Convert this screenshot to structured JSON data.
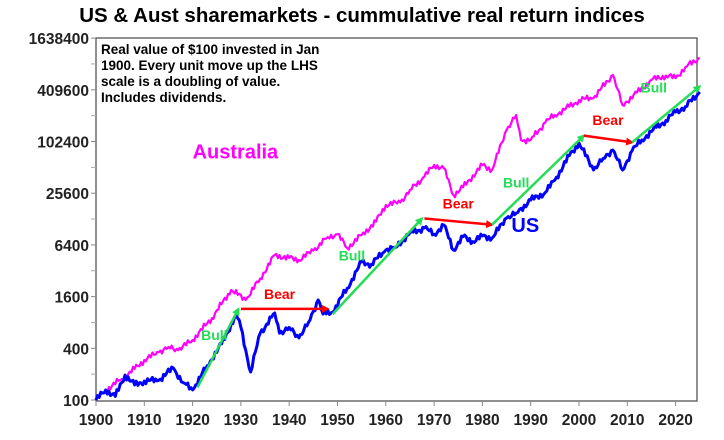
{
  "chart_data": {
    "type": "line",
    "title": "US & Aust sharemarkets - cummulative real return indices",
    "note": "Real value of $100 invested in Jan 1900. Every unit move up the LHS scale is a doubling of value. Includes dividends.",
    "xlabel": "",
    "ylabel": "",
    "yscale": "log4",
    "xlim": [
      1900,
      2026
    ],
    "ylim": [
      100,
      1638400
    ],
    "x_ticks": [
      "1900",
      "1910",
      "1920",
      "1930",
      "1940",
      "1950",
      "1960",
      "1970",
      "1980",
      "1990",
      "2000",
      "2010",
      "2020"
    ],
    "y_ticks": [
      "100",
      "400",
      "1600",
      "6400",
      "25600",
      "102400",
      "409600",
      "1638400"
    ],
    "grid": false,
    "series": [
      {
        "name": "Australia",
        "color": "#ff00ff",
        "x": [
          1900,
          1902,
          1905,
          1908,
          1910,
          1913,
          1915,
          1917,
          1920,
          1924,
          1928,
          1931,
          1934,
          1937,
          1940,
          1942,
          1945,
          1948,
          1950,
          1952,
          1955,
          1958,
          1960,
          1963,
          1965,
          1968,
          1970,
          1972,
          1974,
          1976,
          1980,
          1982,
          1985,
          1987,
          1988,
          1990,
          1993,
          1995,
          1998,
          2000,
          2003,
          2007,
          2009,
          2012,
          2015,
          2018,
          2020,
          2022,
          2025
        ],
        "values": [
          100,
          130,
          171,
          230,
          292,
          360,
          414,
          380,
          500,
          900,
          1910,
          1460,
          2600,
          4880,
          4500,
          4270,
          5500,
          7910,
          8500,
          5890,
          8350,
          12000,
          18660,
          20000,
          27900,
          40000,
          54500,
          50000,
          24400,
          30000,
          54500,
          48000,
          139200,
          208500,
          106700,
          106700,
          170000,
          208500,
          260000,
          311000,
          330000,
          609000,
          272500,
          380000,
          533000,
          600000,
          560000,
          750000,
          960000
        ]
      },
      {
        "name": "US",
        "color": "#0000ff",
        "x": [
          1900,
          1902,
          1904,
          1906,
          1908,
          1910,
          1913,
          1916,
          1918,
          1920,
          1923,
          1926,
          1929,
          1930,
          1932,
          1934,
          1937,
          1938,
          1940,
          1942,
          1944,
          1946,
          1947,
          1949,
          1952,
          1955,
          1957,
          1960,
          1962,
          1965,
          1968,
          1970,
          1972,
          1974,
          1976,
          1978,
          1980,
          1982,
          1985,
          1987,
          1990,
          1993,
          1995,
          1998,
          2000,
          2003,
          2005,
          2007,
          2009,
          2011,
          2013,
          2016,
          2018,
          2020,
          2022,
          2025
        ],
        "values": [
          100,
          131,
          110,
          195,
          150,
          166,
          170,
          236,
          160,
          131,
          250,
          450,
          977,
          700,
          212,
          600,
          1031,
          600,
          700,
          528,
          800,
          1460,
          1000,
          1059,
          2000,
          4045,
          3800,
          5583,
          6000,
          8800,
          10070,
          8500,
          10900,
          5583,
          8000,
          7000,
          8120,
          7700,
          13160,
          15000,
          21300,
          26000,
          36500,
          70000,
          98300,
          47700,
          65000,
          81500,
          47700,
          80000,
          106700,
          150000,
          180000,
          226000,
          260000,
          386000
        ]
      }
    ],
    "annotations": [
      {
        "text": "Australia",
        "x": 1920,
        "y": 65000,
        "color": "#ff00ff",
        "size": "large"
      },
      {
        "text": "US",
        "x": 1986,
        "y": 9000,
        "color": "#0000ff",
        "size": "large"
      },
      {
        "text": "Bull",
        "kind": "arrow",
        "color": "#22dd55",
        "from": [
          1921,
          140
        ],
        "to": [
          1929.5,
          1150
        ],
        "label_at": [
          1924.5,
          500
        ]
      },
      {
        "text": "Bear",
        "kind": "arrow",
        "color": "#ff0000",
        "from": [
          1930,
          1150
        ],
        "to": [
          1948,
          1150
        ],
        "label_at": [
          1938,
          1500
        ]
      },
      {
        "text": "Bull",
        "kind": "arrow",
        "color": "#22dd55",
        "from": [
          1949,
          1000
        ],
        "to": [
          1967.5,
          13000
        ],
        "label_at": [
          1953,
          4200
        ]
      },
      {
        "text": "Bear",
        "kind": "arrow",
        "color": "#ff0000",
        "from": [
          1968,
          13000
        ],
        "to": [
          1982,
          11000
        ],
        "label_at": [
          1975,
          17000
        ]
      },
      {
        "text": "Bull",
        "kind": "arrow",
        "color": "#22dd55",
        "from": [
          1982,
          11000
        ],
        "to": [
          2001,
          120000
        ],
        "label_at": [
          1987,
          30000
        ]
      },
      {
        "text": "Bear",
        "kind": "arrow",
        "color": "#ff0000",
        "from": [
          2001,
          120000
        ],
        "to": [
          2011,
          100000
        ],
        "label_at": [
          2006,
          160000
        ]
      },
      {
        "text": "Bull",
        "kind": "arrow",
        "color": "#22dd55",
        "from": [
          2011,
          100000
        ],
        "to": [
          2025,
          450000
        ],
        "label_at": [
          2015.5,
          380000
        ]
      }
    ]
  }
}
